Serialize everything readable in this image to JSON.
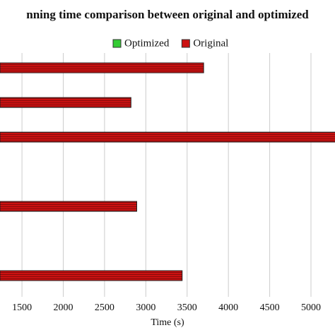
{
  "chart_data": {
    "type": "barh",
    "title": "nning time comparison between original and optimized",
    "x_label": "Time (s)",
    "categories": [
      null,
      null,
      null,
      null,
      null,
      null,
      null
    ],
    "series": [
      {
        "name": "Optimized",
        "color": "#33cc33",
        "values": [
          null,
          null,
          null,
          null,
          null,
          null,
          null
        ]
      },
      {
        "name": "Original",
        "color": "#cc1111",
        "values": [
          3700,
          2820,
          5400,
          null,
          2890,
          null,
          3440
        ]
      }
    ],
    "xlim": [
      1234,
      5291
    ],
    "xticks": [
      1500,
      2000,
      2500,
      3000,
      3500,
      4000,
      4500,
      5000
    ],
    "grid": true
  }
}
